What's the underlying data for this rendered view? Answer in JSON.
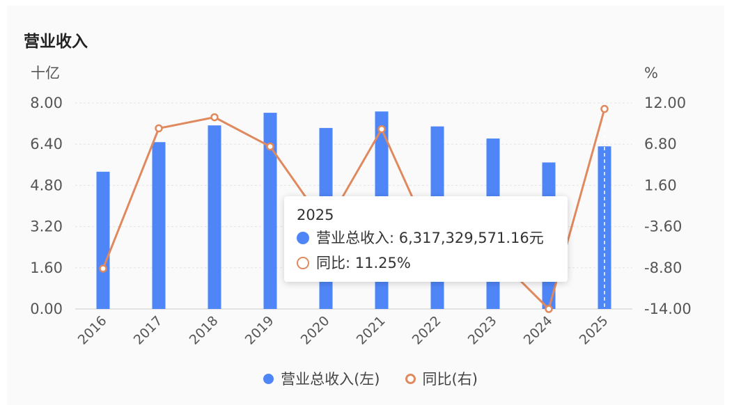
{
  "header": {
    "title": "营业收入"
  },
  "colors": {
    "bar": "#4f86f7",
    "line": "#e0895f"
  },
  "chart_data": {
    "type": "bar",
    "categories": [
      "2016",
      "2017",
      "2018",
      "2019",
      "2020",
      "2021",
      "2022",
      "2023",
      "2024",
      "2025"
    ],
    "series": [
      {
        "name": "营业总收入(左)",
        "type": "bar",
        "axis": "left",
        "values": [
          5.33,
          6.48,
          7.13,
          7.62,
          7.03,
          7.67,
          7.09,
          6.62,
          5.69,
          6.317
        ]
      },
      {
        "name": "同比(右)",
        "type": "line",
        "axis": "right",
        "values": [
          -8.9,
          8.8,
          10.2,
          6.5,
          -3.5,
          8.7,
          -6.9,
          -7.0,
          -14.0,
          11.25
        ]
      }
    ],
    "y_left": {
      "unit": "十亿",
      "ticks": [
        "8.00",
        "6.40",
        "4.80",
        "3.20",
        "1.60",
        "0.00"
      ],
      "range": [
        0,
        8
      ]
    },
    "y_right": {
      "unit": "%",
      "ticks": [
        "12.00",
        "6.80",
        "1.60",
        "-3.60",
        "-8.80",
        "-14.00"
      ],
      "range": [
        -14,
        12
      ]
    },
    "highlight_index": 9
  },
  "tooltip": {
    "title": "2025",
    "rows": [
      {
        "label": "营业总收入: 6,317,329,571.16元"
      },
      {
        "label": "同比: 11.25%"
      }
    ]
  },
  "legend": {
    "items": [
      {
        "label": "营业总收入(左)"
      },
      {
        "label": "同比(右)"
      }
    ]
  }
}
